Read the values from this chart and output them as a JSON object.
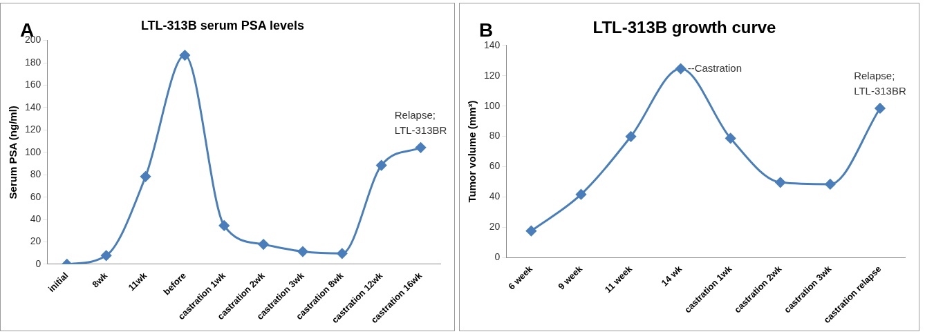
{
  "chart_data": [
    {
      "type": "line",
      "title": "LTL-313B serum PSA levels",
      "ylabel": "Serum PSA (ng/ml)",
      "categories": [
        "initial",
        "8wk",
        "11wk",
        "before",
        "castration 1wk",
        "castration 2wk",
        "castration 3wk",
        "castration 8wk",
        "castration 12wk",
        "castration 16wk"
      ],
      "series": [
        {
          "color": "#4a7ebb",
          "values": [
            0,
            7.8,
            78.4,
            186.8,
            34.6,
            17.8,
            11.4,
            9.7,
            88.4,
            104.3
          ]
        }
      ],
      "ylim": [
        0,
        200
      ],
      "yticks": [
        0,
        20,
        40,
        60,
        80,
        100,
        120,
        140,
        160,
        180,
        200
      ],
      "grid": false,
      "legend": false,
      "marker": "diamond",
      "line_style": "solid",
      "annotations": [
        "A",
        {
          "text": "Relapse; LTL-313BR",
          "x": "castration 16wk",
          "y": 104.3
        }
      ]
    },
    {
      "type": "line",
      "title": "LTL-313B growth curve",
      "ylabel": "Tumor volume (mm³)",
      "categories": [
        "6 week",
        "9 week",
        "11 week",
        "14 wk",
        "castration 1wk",
        "castration 2wk",
        "castration 3wk",
        "castration relapse"
      ],
      "series": [
        {
          "color": "#4a7ebb",
          "values": [
            17.6,
            41.7,
            79.9,
            124.6,
            78.7,
            49.6,
            48.4,
            98.5
          ]
        }
      ],
      "ylim": [
        0,
        140
      ],
      "yticks": [
        0,
        20,
        40,
        60,
        80,
        100,
        120,
        140
      ],
      "grid": false,
      "legend": false,
      "marker": "diamond",
      "line_style": "solid",
      "annotations": [
        "B",
        {
          "text": "--Castration",
          "x": "14 wk",
          "y": 124.6
        },
        {
          "text": "Relapse; LTL-313BR",
          "x": "castration relapse",
          "y": 98.5
        }
      ]
    }
  ]
}
